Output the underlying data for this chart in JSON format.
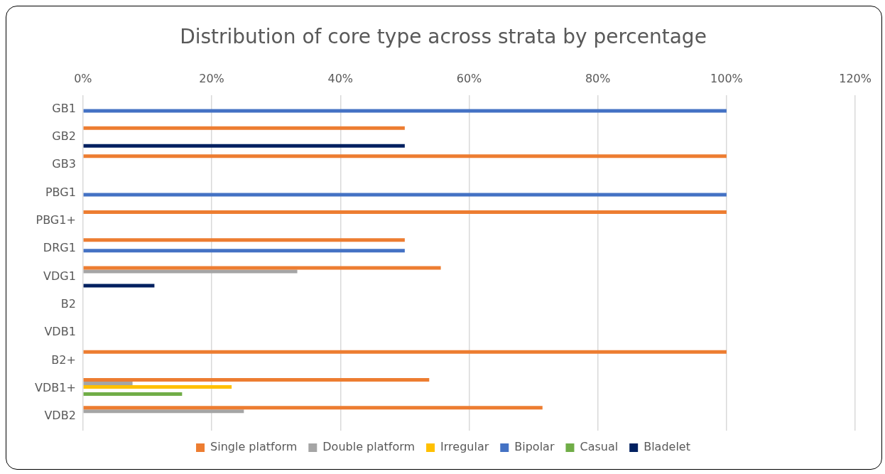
{
  "chart_data": {
    "type": "bar",
    "orientation": "horizontal",
    "title": "Distribution of core type across strata by percentage",
    "categories": [
      "GB1",
      "GB2",
      "GB3",
      "PBG1",
      "PBG1+",
      "DRG1",
      "VDG1",
      "B2",
      "VDB1",
      "B2+",
      "VDB1+",
      "VDB2"
    ],
    "series": [
      {
        "name": "Single platform",
        "color": "#ed7d31",
        "values": [
          null,
          50,
          100,
          null,
          100,
          50,
          55.6,
          null,
          null,
          100,
          53.8,
          71.4
        ]
      },
      {
        "name": "Double platform",
        "color": "#a5a5a5",
        "values": [
          null,
          null,
          null,
          null,
          null,
          null,
          33.3,
          null,
          null,
          null,
          7.7,
          25
        ]
      },
      {
        "name": "Irregular",
        "color": "#ffc000",
        "values": [
          null,
          null,
          null,
          null,
          null,
          null,
          null,
          null,
          null,
          null,
          23.1,
          null
        ]
      },
      {
        "name": "Bipolar",
        "color": "#4472c4",
        "values": [
          100,
          null,
          null,
          100,
          null,
          50,
          null,
          null,
          null,
          null,
          null,
          null
        ]
      },
      {
        "name": "Casual",
        "color": "#70ad47",
        "values": [
          null,
          null,
          null,
          null,
          null,
          null,
          null,
          null,
          null,
          null,
          15.4,
          null
        ]
      },
      {
        "name": "Bladelet",
        "color": "#002060",
        "values": [
          null,
          50,
          null,
          null,
          null,
          null,
          11.1,
          null,
          null,
          null,
          null,
          null
        ]
      }
    ],
    "xlim": [
      0,
      120
    ],
    "xticks": [
      {
        "value": 0,
        "label": "0%"
      },
      {
        "value": 20,
        "label": "20%"
      },
      {
        "value": 40,
        "label": "40%"
      },
      {
        "value": 60,
        "label": "60%"
      },
      {
        "value": 80,
        "label": "80%"
      },
      {
        "value": 100,
        "label": "100%"
      },
      {
        "value": 120,
        "label": "120%"
      }
    ],
    "grid": "x",
    "legend": "bottom"
  }
}
